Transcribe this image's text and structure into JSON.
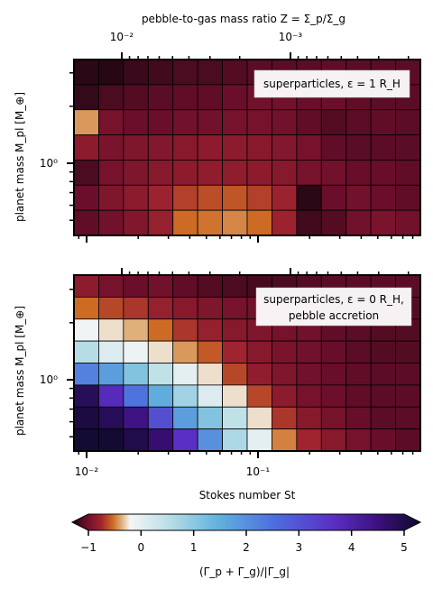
{
  "chart_data": [
    {
      "type": "heatmap",
      "panel": "top",
      "top_axis_label": "pebble-to-gas mass ratio Z = Σ_p/Σ_g",
      "top_ticks": [
        "10⁻²",
        "10⁻³"
      ],
      "ylabel": "planet mass M_pl [M_⊕]",
      "ytick_labels": [
        "10⁰"
      ],
      "annotation": "superparticles, ε = 1 R_H",
      "value_range": [
        -1,
        5
      ],
      "rows_top_to_bottom": [
        [
          -0.95,
          -0.96,
          -0.9,
          -0.88,
          -0.85,
          -0.85,
          -0.82,
          -0.8,
          -0.8,
          -0.8,
          -0.78,
          -0.8,
          -0.8,
          -0.8
        ],
        [
          -0.92,
          -0.85,
          -0.82,
          -0.8,
          -0.78,
          -0.78,
          -0.75,
          -0.72,
          -0.72,
          -0.75,
          -0.75,
          -0.78,
          -0.8,
          -0.8
        ],
        [
          -0.2,
          -0.7,
          -0.75,
          -0.75,
          -0.72,
          -0.72,
          -0.7,
          -0.7,
          -0.72,
          -0.78,
          -0.82,
          -0.8,
          -0.78,
          -0.8
        ],
        [
          -0.6,
          -0.68,
          -0.66,
          -0.64,
          -0.62,
          -0.6,
          -0.6,
          -0.62,
          -0.64,
          -0.7,
          -0.78,
          -0.8,
          -0.8,
          -0.8
        ],
        [
          -0.85,
          -0.7,
          -0.66,
          -0.62,
          -0.6,
          -0.58,
          -0.58,
          -0.6,
          -0.62,
          -0.7,
          -0.72,
          -0.76,
          -0.76,
          -0.78
        ],
        [
          -0.75,
          -0.66,
          -0.6,
          -0.52,
          -0.42,
          -0.38,
          -0.36,
          -0.42,
          -0.52,
          -0.95,
          -0.75,
          -0.72,
          -0.75,
          -0.78
        ],
        [
          -0.78,
          -0.72,
          -0.65,
          -0.55,
          -0.3,
          -0.28,
          -0.24,
          -0.3,
          -0.52,
          -0.88,
          -0.82,
          -0.72,
          -0.68,
          -0.72
        ]
      ]
    },
    {
      "type": "heatmap",
      "panel": "bottom",
      "xlabel": "Stokes number St",
      "xtick_labels": [
        "10⁻²",
        "10⁻¹"
      ],
      "ylabel": "planet mass M_pl [M_⊕]",
      "ytick_labels": [
        "10⁰"
      ],
      "annotation_lines": [
        "superparticles, ε = 0 R_H,",
        "pebble accretion"
      ],
      "value_range": [
        -1,
        5
      ],
      "rows_top_to_bottom": [
        [
          -0.6,
          -0.7,
          -0.75,
          -0.72,
          -0.78,
          -0.82,
          -0.85,
          -0.86,
          -0.85,
          -0.82,
          -0.8,
          -0.8,
          -0.8,
          -0.8
        ],
        [
          -0.3,
          -0.4,
          -0.45,
          -0.55,
          -0.62,
          -0.66,
          -0.7,
          -0.72,
          -0.75,
          -0.78,
          -0.8,
          -0.82,
          -0.82,
          -0.82
        ],
        [
          0.05,
          -0.05,
          -0.15,
          -0.3,
          -0.45,
          -0.55,
          -0.62,
          -0.66,
          -0.7,
          -0.72,
          -0.78,
          -0.8,
          -0.82,
          -0.82
        ],
        [
          0.7,
          0.3,
          0.1,
          -0.05,
          -0.2,
          -0.35,
          -0.5,
          -0.62,
          -0.68,
          -0.72,
          -0.76,
          -0.8,
          -0.82,
          -0.82
        ],
        [
          2.2,
          1.8,
          1.2,
          0.6,
          0.2,
          -0.05,
          -0.4,
          -0.58,
          -0.66,
          -0.72,
          -0.76,
          -0.78,
          -0.8,
          -0.8
        ],
        [
          4.6,
          3.6,
          2.4,
          1.6,
          0.9,
          0.3,
          -0.05,
          -0.4,
          -0.6,
          -0.7,
          -0.74,
          -0.78,
          -0.8,
          -0.8
        ],
        [
          4.8,
          4.6,
          4.2,
          3.0,
          1.8,
          1.2,
          0.6,
          -0.05,
          -0.45,
          -0.62,
          -0.7,
          -0.76,
          -0.8,
          -0.8
        ],
        [
          4.9,
          4.9,
          4.7,
          4.4,
          3.5,
          2.0,
          0.8,
          0.2,
          -0.25,
          -0.5,
          -0.62,
          -0.7,
          -0.76,
          -0.8
        ]
      ]
    }
  ],
  "colorbar": {
    "label": "(Γ_p + Γ_g)/|Γ_g|",
    "range": [
      -1,
      5
    ],
    "ticks": [
      -1,
      0,
      1,
      2,
      3,
      4,
      5
    ],
    "tick_labels": [
      "−1",
      "0",
      "1",
      "2",
      "3",
      "4",
      "5"
    ],
    "stops": [
      [
        -1.0,
        "#1a0610"
      ],
      [
        -0.75,
        "#6b0e2b"
      ],
      [
        -0.5,
        "#a0242f"
      ],
      [
        -0.3,
        "#cd6a23"
      ],
      [
        -0.15,
        "#dfb07a"
      ],
      [
        0.0,
        "#f6f6f6"
      ],
      [
        0.7,
        "#b6dde6"
      ],
      [
        1.5,
        "#62b3dc"
      ],
      [
        2.5,
        "#4d6cde"
      ],
      [
        3.5,
        "#5a2fc4"
      ],
      [
        4.3,
        "#3b0f7a"
      ],
      [
        5.0,
        "#0e0a2a"
      ]
    ]
  }
}
